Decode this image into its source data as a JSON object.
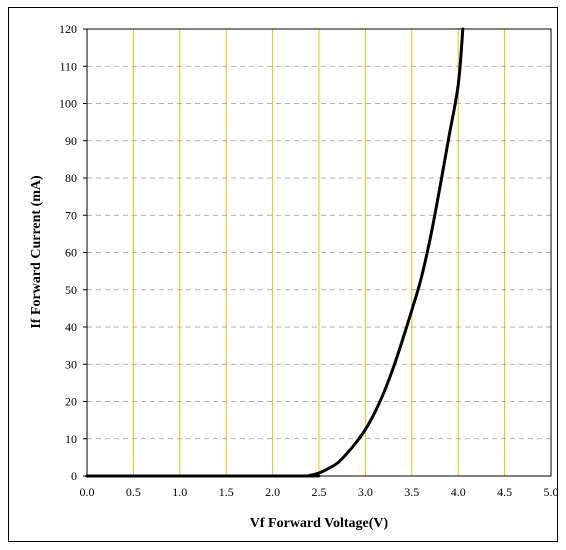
{
  "chart_data": {
    "type": "line",
    "xlabel": "Vf Forward Voltage(V)",
    "ylabel": "If Forward Current (mA)",
    "xlim": [
      0.0,
      5.0
    ],
    "ylim": [
      0,
      120
    ],
    "x_ticks": [
      "0.0",
      "0.5",
      "1.0",
      "1.5",
      "2.0",
      "2.5",
      "3.0",
      "3.5",
      "4.0",
      "4.5",
      "5.0"
    ],
    "y_ticks": [
      "0",
      "10",
      "20",
      "30",
      "40",
      "50",
      "60",
      "70",
      "80",
      "90",
      "100",
      "110",
      "120"
    ],
    "grid": {
      "vertical": true,
      "horizontal": true,
      "vertical_style": "solid",
      "horizontal_style": "dashed"
    },
    "colors": {
      "vertical_grid": "#f0c000",
      "horizontal_grid": "#999999",
      "curve": "#000000"
    },
    "series": [
      {
        "x": [
          0.0,
          2.3,
          2.4,
          2.5,
          2.6,
          2.7,
          2.8,
          2.9,
          3.0,
          3.1,
          3.2,
          3.3,
          3.4,
          3.5,
          3.6,
          3.7,
          3.8,
          3.9,
          4.0,
          4.05
        ],
        "y": [
          0,
          0,
          0.2,
          0.8,
          2,
          3.5,
          6,
          9,
          12.5,
          17,
          22.5,
          29,
          36.5,
          44.5,
          53,
          64,
          77,
          91,
          105,
          120
        ]
      }
    ]
  }
}
